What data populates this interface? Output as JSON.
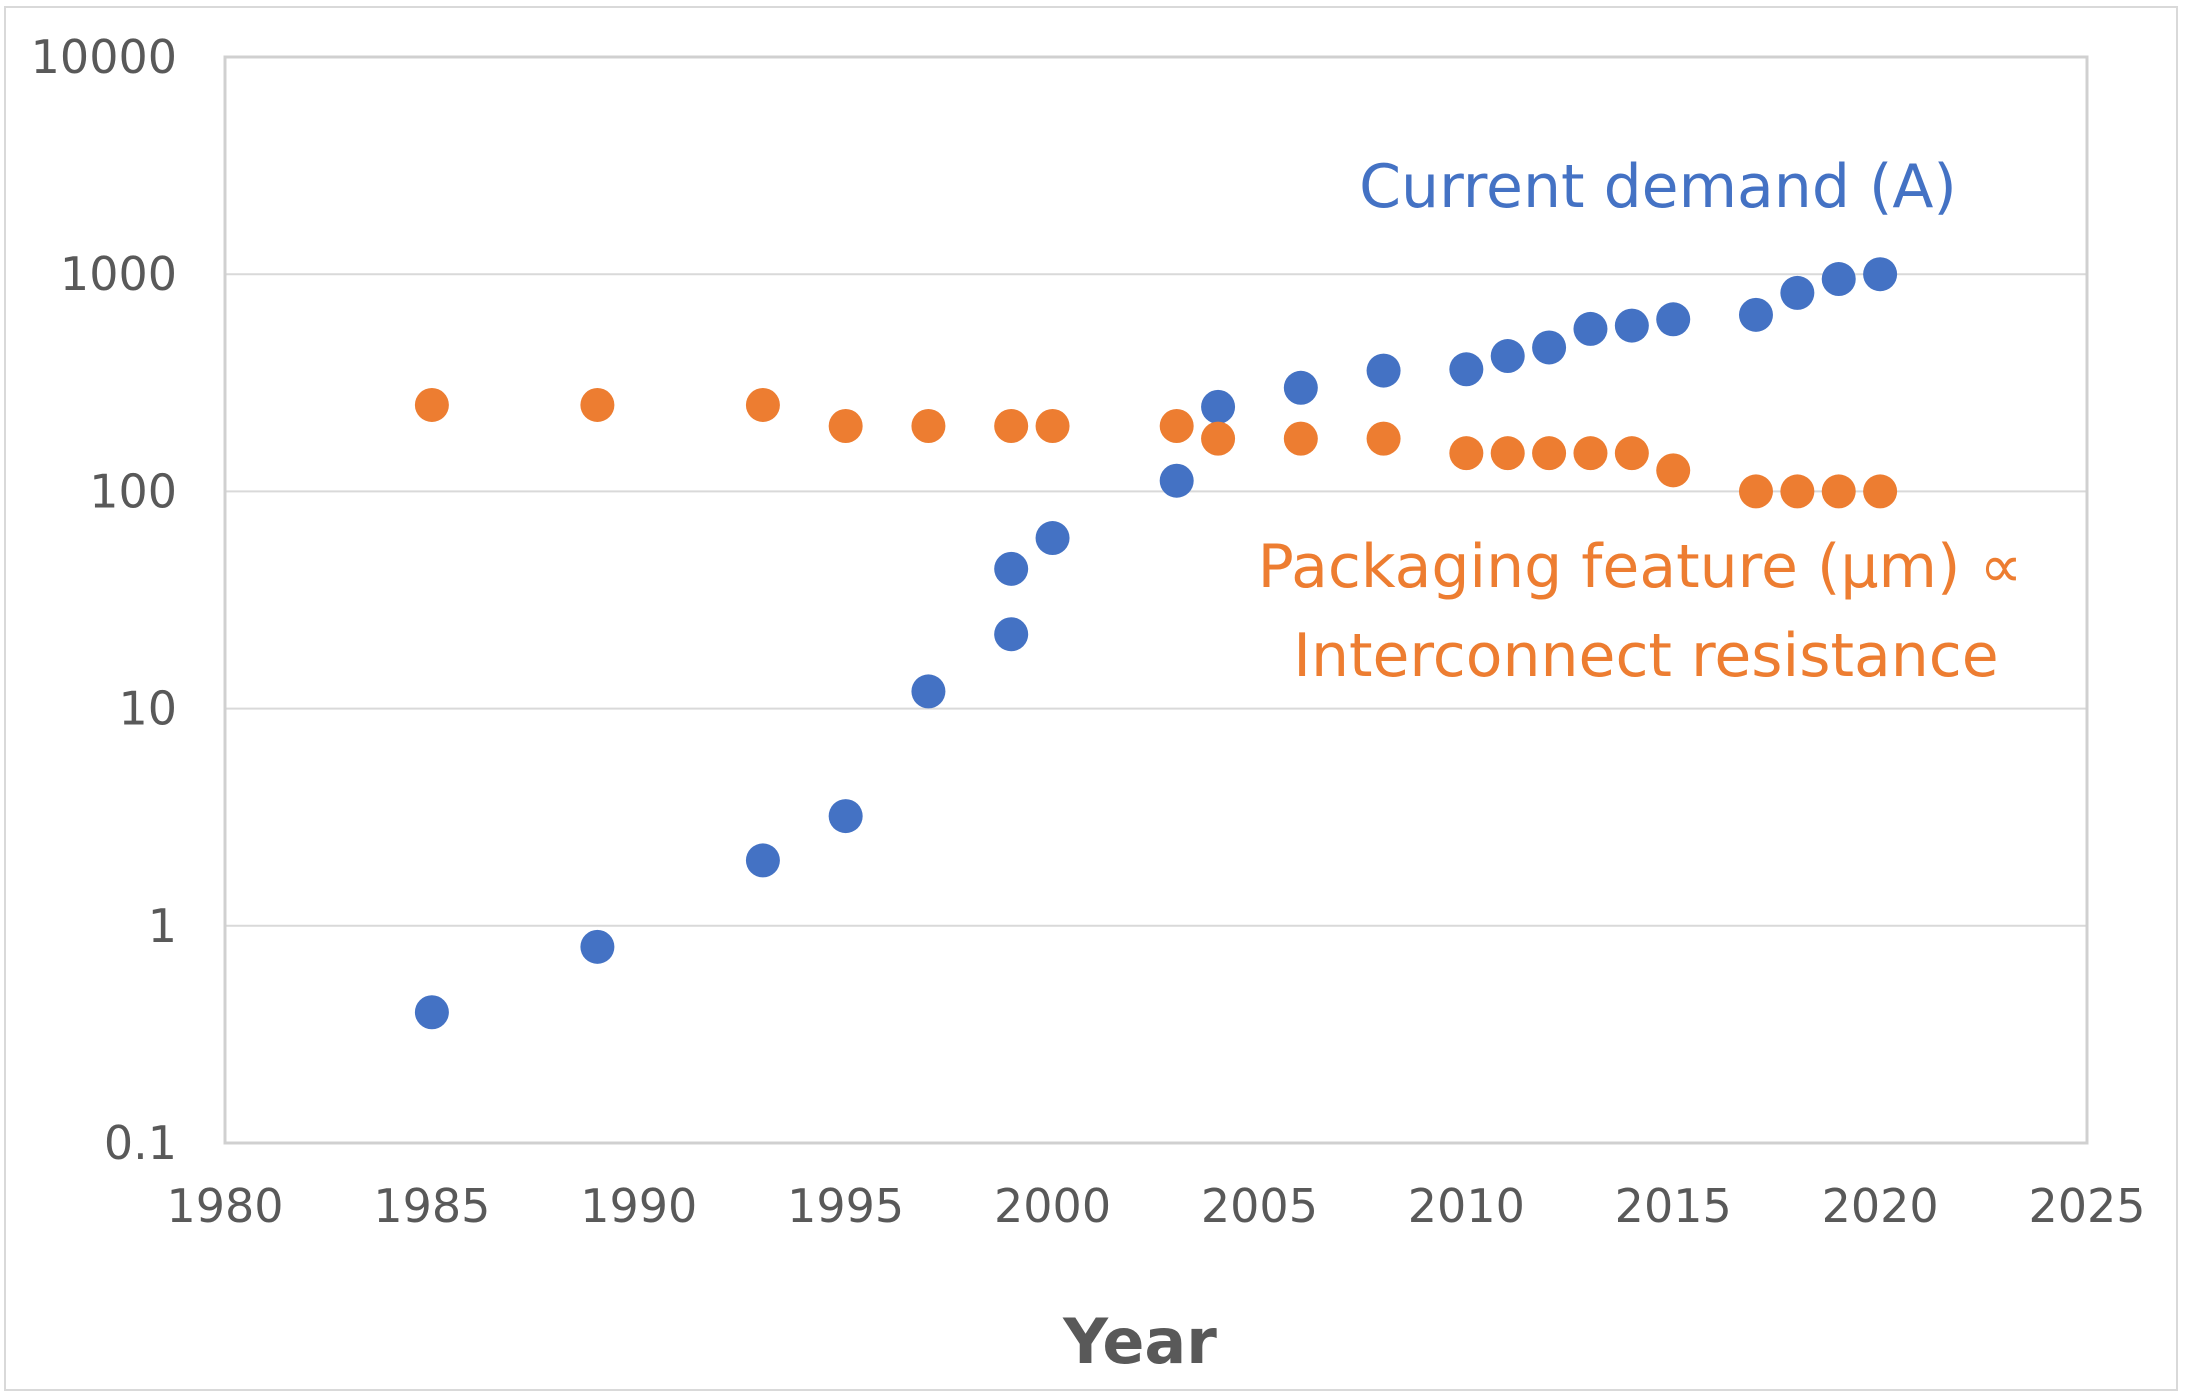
{
  "chart_data": {
    "type": "scatter",
    "title": "",
    "xlabel": "Year",
    "ylabel": "",
    "xlim": [
      1980,
      2025
    ],
    "ylim": [
      0.1,
      10000
    ],
    "yscale": "log",
    "grid": true,
    "x_ticks": [
      "1980",
      "1985",
      "1990",
      "1995",
      "2000",
      "2005",
      "2010",
      "2015",
      "2020",
      "2025"
    ],
    "y_ticks": [
      "0.1",
      "1",
      "10",
      "100",
      "1000",
      "10000"
    ],
    "series": [
      {
        "name": "Current demand (A)",
        "color": "#4472c4",
        "points": [
          [
            1985,
            0.4
          ],
          [
            1989,
            0.8
          ],
          [
            1993,
            2
          ],
          [
            1995,
            3.2
          ],
          [
            1997,
            12
          ],
          [
            1999,
            22
          ],
          [
            1999,
            44
          ],
          [
            2000,
            61
          ],
          [
            2003,
            112
          ],
          [
            2004,
            245
          ],
          [
            2006,
            300
          ],
          [
            2008,
            360
          ],
          [
            2010,
            365
          ],
          [
            2011,
            420
          ],
          [
            2012,
            460
          ],
          [
            2013,
            560
          ],
          [
            2014,
            580
          ],
          [
            2015,
            620
          ],
          [
            2017,
            650
          ],
          [
            2018,
            820
          ],
          [
            2019,
            950
          ],
          [
            2020,
            1000
          ]
        ]
      },
      {
        "name": "Packaging feature (μm) ∝ Interconnect resistance",
        "color": "#ed7d31",
        "points": [
          [
            1985,
            250
          ],
          [
            1989,
            250
          ],
          [
            1993,
            250
          ],
          [
            1995,
            200
          ],
          [
            1997,
            200
          ],
          [
            1999,
            200
          ],
          [
            2000,
            200
          ],
          [
            2003,
            200
          ],
          [
            2004,
            175
          ],
          [
            2006,
            175
          ],
          [
            2008,
            175
          ],
          [
            2010,
            150
          ],
          [
            2011,
            150
          ],
          [
            2012,
            150
          ],
          [
            2013,
            150
          ],
          [
            2014,
            150
          ],
          [
            2015,
            125
          ],
          [
            2017,
            100
          ],
          [
            2018,
            100
          ],
          [
            2019,
            100
          ],
          [
            2020,
            100
          ]
        ]
      }
    ],
    "annotations": {
      "current": "Current demand (A)",
      "packaging_line1": "Packaging feature (μm) ∝",
      "packaging_line2": "Interconnect resistance"
    }
  }
}
